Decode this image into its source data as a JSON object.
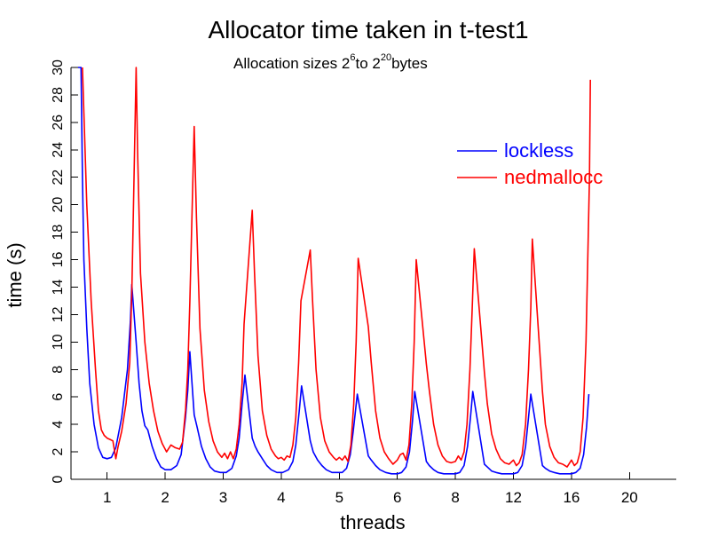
{
  "chart_data": {
    "type": "line",
    "title": "Allocator time taken in t-test1",
    "subtitle": {
      "prefix": "Allocation sizes 2",
      "exp1": "6",
      "middle": "to 2",
      "exp2": "20",
      "suffix": "bytes"
    },
    "xlabel": "threads",
    "ylabel": "time (s)",
    "ylim": [
      0,
      30
    ],
    "yticks": [
      0,
      2,
      4,
      6,
      8,
      10,
      12,
      14,
      16,
      18,
      20,
      22,
      24,
      26,
      28,
      30
    ],
    "xlim": [
      0,
      20
    ],
    "group_labels": [
      "1",
      "2",
      "3",
      "4",
      "5",
      "6",
      "8",
      "12",
      "16",
      "20"
    ],
    "legend_position": "top-right",
    "series": [
      {
        "name": "lockless",
        "color": "#0000ff",
        "points": [
          [
            0.0,
            30.0
          ],
          [
            0.1,
            30.0
          ],
          [
            0.15,
            22.0
          ],
          [
            0.2,
            16.0
          ],
          [
            0.3,
            11.0
          ],
          [
            0.4,
            7.0
          ],
          [
            0.55,
            4.0
          ],
          [
            0.7,
            2.3
          ],
          [
            0.85,
            1.6
          ],
          [
            1.0,
            1.5
          ],
          [
            1.15,
            1.6
          ],
          [
            1.3,
            2.3
          ],
          [
            1.5,
            4.5
          ],
          [
            1.7,
            8.0
          ],
          [
            1.8,
            11.5
          ],
          [
            1.85,
            14.2
          ],
          [
            2.0,
            10.0
          ],
          [
            2.1,
            7.0
          ],
          [
            2.2,
            5.0
          ],
          [
            2.3,
            3.9
          ],
          [
            2.4,
            3.6
          ],
          [
            2.55,
            2.4
          ],
          [
            2.7,
            1.5
          ],
          [
            2.85,
            0.9
          ],
          [
            3.0,
            0.7
          ],
          [
            3.2,
            0.7
          ],
          [
            3.4,
            1.0
          ],
          [
            3.55,
            1.8
          ],
          [
            3.7,
            4.5
          ],
          [
            3.78,
            6.5
          ],
          [
            3.85,
            9.3
          ],
          [
            4.0,
            4.7
          ],
          [
            4.1,
            3.8
          ],
          [
            4.25,
            2.4
          ],
          [
            4.4,
            1.5
          ],
          [
            4.55,
            0.9
          ],
          [
            4.7,
            0.6
          ],
          [
            4.9,
            0.5
          ],
          [
            5.1,
            0.5
          ],
          [
            5.3,
            0.8
          ],
          [
            5.45,
            1.7
          ],
          [
            5.55,
            3.0
          ],
          [
            5.65,
            5.5
          ],
          [
            5.75,
            7.6
          ],
          [
            6.0,
            3.0
          ],
          [
            6.1,
            2.4
          ],
          [
            6.2,
            2.0
          ],
          [
            6.35,
            1.5
          ],
          [
            6.5,
            1.0
          ],
          [
            6.65,
            0.7
          ],
          [
            6.85,
            0.5
          ],
          [
            7.05,
            0.5
          ],
          [
            7.25,
            0.7
          ],
          [
            7.4,
            1.3
          ],
          [
            7.5,
            2.5
          ],
          [
            7.62,
            5.0
          ],
          [
            7.7,
            6.8
          ],
          [
            8.0,
            2.8
          ],
          [
            8.1,
            2.0
          ],
          [
            8.25,
            1.4
          ],
          [
            8.4,
            1.0
          ],
          [
            8.55,
            0.7
          ],
          [
            8.75,
            0.5
          ],
          [
            8.95,
            0.5
          ],
          [
            9.1,
            0.5
          ],
          [
            9.25,
            0.8
          ],
          [
            9.38,
            1.8
          ],
          [
            9.48,
            3.5
          ],
          [
            9.57,
            5.2
          ],
          [
            9.62,
            6.2
          ],
          [
            10.0,
            1.7
          ],
          [
            10.1,
            1.4
          ],
          [
            10.25,
            1.0
          ],
          [
            10.4,
            0.7
          ],
          [
            10.6,
            0.5
          ],
          [
            10.8,
            0.4
          ],
          [
            11.0,
            0.4
          ],
          [
            11.15,
            0.5
          ],
          [
            11.3,
            0.9
          ],
          [
            11.42,
            2.0
          ],
          [
            11.52,
            4.2
          ],
          [
            11.6,
            6.4
          ],
          [
            12.0,
            1.3
          ],
          [
            12.1,
            1.0
          ],
          [
            12.25,
            0.7
          ],
          [
            12.4,
            0.5
          ],
          [
            12.6,
            0.4
          ],
          [
            12.8,
            0.4
          ],
          [
            13.0,
            0.4
          ],
          [
            13.15,
            0.5
          ],
          [
            13.3,
            1.0
          ],
          [
            13.42,
            2.4
          ],
          [
            13.52,
            4.5
          ],
          [
            13.6,
            6.4
          ],
          [
            14.0,
            1.1
          ],
          [
            14.1,
            0.9
          ],
          [
            14.25,
            0.6
          ],
          [
            14.4,
            0.5
          ],
          [
            14.6,
            0.4
          ],
          [
            14.8,
            0.4
          ],
          [
            15.0,
            0.4
          ],
          [
            15.15,
            0.5
          ],
          [
            15.3,
            1.0
          ],
          [
            15.42,
            2.4
          ],
          [
            15.52,
            4.5
          ],
          [
            15.6,
            6.2
          ],
          [
            16.0,
            1.0
          ],
          [
            16.1,
            0.8
          ],
          [
            16.25,
            0.6
          ],
          [
            16.4,
            0.5
          ],
          [
            16.6,
            0.4
          ],
          [
            16.8,
            0.4
          ],
          [
            17.0,
            0.4
          ],
          [
            17.15,
            0.5
          ],
          [
            17.3,
            0.8
          ],
          [
            17.42,
            1.8
          ],
          [
            17.52,
            3.8
          ],
          [
            17.6,
            6.2
          ]
        ]
      },
      {
        "name": "nedmallocc",
        "color": "#ff0000",
        "points": [
          [
            0.15,
            30.0
          ],
          [
            0.3,
            20.0
          ],
          [
            0.45,
            13.0
          ],
          [
            0.6,
            8.0
          ],
          [
            0.7,
            5.0
          ],
          [
            0.8,
            3.6
          ],
          [
            0.9,
            3.2
          ],
          [
            1.0,
            3.0
          ],
          [
            1.1,
            2.9
          ],
          [
            1.2,
            2.8
          ],
          [
            1.3,
            1.5
          ],
          [
            1.38,
            2.4
          ],
          [
            1.5,
            3.5
          ],
          [
            1.65,
            5.5
          ],
          [
            1.78,
            8.5
          ],
          [
            1.85,
            13.5
          ],
          [
            2.0,
            30.0
          ],
          [
            2.05,
            24.0
          ],
          [
            2.15,
            15.0
          ],
          [
            2.3,
            10.0
          ],
          [
            2.45,
            7.0
          ],
          [
            2.6,
            5.0
          ],
          [
            2.75,
            3.5
          ],
          [
            2.9,
            2.6
          ],
          [
            3.05,
            2.0
          ],
          [
            3.2,
            2.5
          ],
          [
            3.35,
            2.3
          ],
          [
            3.5,
            2.2
          ],
          [
            3.6,
            2.7
          ],
          [
            3.7,
            5.0
          ],
          [
            3.78,
            8.0
          ],
          [
            3.85,
            12.9
          ],
          [
            4.0,
            25.7
          ],
          [
            4.08,
            19.0
          ],
          [
            4.2,
            11.0
          ],
          [
            4.35,
            6.5
          ],
          [
            4.5,
            4.2
          ],
          [
            4.65,
            2.8
          ],
          [
            4.8,
            2.0
          ],
          [
            4.95,
            1.6
          ],
          [
            5.05,
            1.9
          ],
          [
            5.15,
            1.5
          ],
          [
            5.25,
            2.0
          ],
          [
            5.35,
            1.5
          ],
          [
            5.45,
            2.2
          ],
          [
            5.55,
            4.0
          ],
          [
            5.65,
            7.0
          ],
          [
            5.72,
            11.3
          ],
          [
            6.0,
            19.6
          ],
          [
            6.08,
            15.0
          ],
          [
            6.2,
            9.0
          ],
          [
            6.35,
            5.0
          ],
          [
            6.5,
            3.2
          ],
          [
            6.65,
            2.2
          ],
          [
            6.8,
            1.7
          ],
          [
            6.9,
            1.5
          ],
          [
            7.0,
            1.6
          ],
          [
            7.1,
            1.4
          ],
          [
            7.2,
            1.7
          ],
          [
            7.3,
            1.6
          ],
          [
            7.4,
            2.5
          ],
          [
            7.5,
            4.5
          ],
          [
            7.6,
            8.5
          ],
          [
            7.68,
            13.0
          ],
          [
            8.0,
            16.7
          ],
          [
            8.08,
            13.0
          ],
          [
            8.2,
            8.0
          ],
          [
            8.35,
            4.5
          ],
          [
            8.5,
            2.8
          ],
          [
            8.65,
            2.0
          ],
          [
            8.8,
            1.6
          ],
          [
            8.9,
            1.4
          ],
          [
            9.0,
            1.6
          ],
          [
            9.1,
            1.4
          ],
          [
            9.2,
            1.7
          ],
          [
            9.3,
            1.3
          ],
          [
            9.4,
            2.5
          ],
          [
            9.5,
            5.5
          ],
          [
            9.58,
            10.0
          ],
          [
            9.65,
            16.1
          ],
          [
            10.0,
            11.1
          ],
          [
            10.1,
            8.5
          ],
          [
            10.25,
            5.0
          ],
          [
            10.4,
            3.0
          ],
          [
            10.55,
            2.0
          ],
          [
            10.7,
            1.5
          ],
          [
            10.85,
            1.1
          ],
          [
            11.0,
            1.4
          ],
          [
            11.1,
            1.8
          ],
          [
            11.2,
            1.9
          ],
          [
            11.3,
            1.4
          ],
          [
            11.4,
            2.5
          ],
          [
            11.5,
            5.5
          ],
          [
            11.58,
            10.0
          ],
          [
            11.65,
            16.0
          ],
          [
            12.0,
            8.4
          ],
          [
            12.1,
            6.5
          ],
          [
            12.25,
            4.0
          ],
          [
            12.4,
            2.5
          ],
          [
            12.55,
            1.7
          ],
          [
            12.7,
            1.3
          ],
          [
            12.85,
            1.2
          ],
          [
            13.0,
            1.3
          ],
          [
            13.1,
            1.7
          ],
          [
            13.2,
            1.4
          ],
          [
            13.3,
            2.0
          ],
          [
            13.4,
            4.0
          ],
          [
            13.5,
            8.0
          ],
          [
            13.58,
            12.5
          ],
          [
            13.65,
            16.8
          ],
          [
            14.0,
            7.8
          ],
          [
            14.1,
            5.5
          ],
          [
            14.25,
            3.3
          ],
          [
            14.4,
            2.2
          ],
          [
            14.55,
            1.5
          ],
          [
            14.7,
            1.2
          ],
          [
            14.85,
            1.1
          ],
          [
            15.0,
            1.4
          ],
          [
            15.1,
            1.0
          ],
          [
            15.2,
            1.2
          ],
          [
            15.3,
            1.8
          ],
          [
            15.42,
            4.0
          ],
          [
            15.52,
            8.0
          ],
          [
            15.6,
            12.5
          ],
          [
            15.65,
            17.5
          ],
          [
            16.0,
            6.4
          ],
          [
            16.1,
            4.0
          ],
          [
            16.25,
            2.4
          ],
          [
            16.4,
            1.6
          ],
          [
            16.55,
            1.2
          ],
          [
            16.7,
            1.1
          ],
          [
            16.85,
            0.9
          ],
          [
            17.0,
            1.4
          ],
          [
            17.1,
            1.0
          ],
          [
            17.2,
            1.2
          ],
          [
            17.3,
            2.0
          ],
          [
            17.4,
            4.5
          ],
          [
            17.5,
            10.0
          ],
          [
            17.58,
            18.0
          ],
          [
            17.62,
            22.0
          ],
          [
            17.65,
            29.1
          ]
        ]
      }
    ]
  }
}
